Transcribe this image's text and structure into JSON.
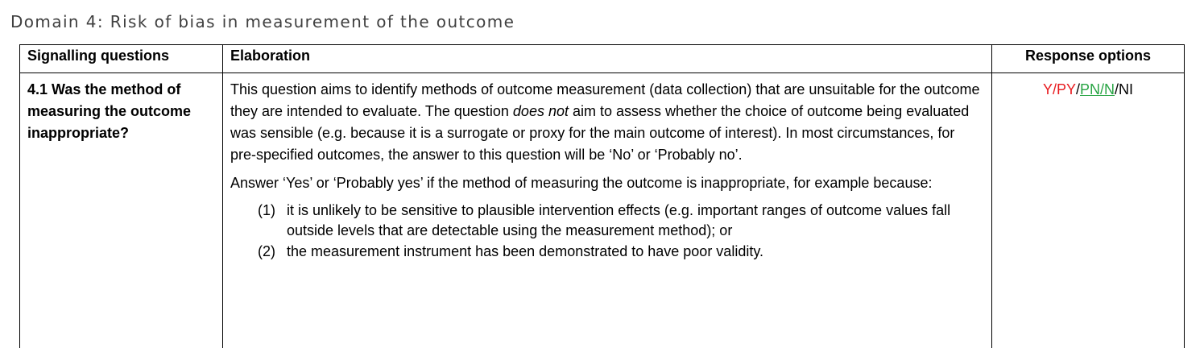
{
  "heading": "Domain 4: Risk of bias in measurement of the outcome",
  "table": {
    "headers": {
      "questions": "Signalling questions",
      "elaboration": "Elaboration",
      "responses": "Response options"
    },
    "row": {
      "question": "4.1 Was the method of measuring the outcome inappropriate?",
      "elaboration": {
        "para1_before": "This question aims to identify methods of outcome measurement (data collection) that are unsuitable for the outcome they are intended to evaluate. The question ",
        "para1_emph": "does not",
        "para1_after": " aim to assess whether the choice of outcome being evaluated was sensible (e.g. because it is a surrogate or proxy for the main outcome of interest). In most circumstances, for pre-specified outcomes, the answer to this question will be ‘No’ or ‘Probably no’.",
        "para2": "Answer ‘Yes’ or ‘Probably yes’ if the method of measuring the outcome is inappropriate, for example because:",
        "list": [
          {
            "num": "(1)",
            "text": "it is unlikely to be sensitive to plausible intervention effects (e.g. important ranges of outcome values fall outside levels that are detectable using the measurement method); or"
          },
          {
            "num": "(2)",
            "text": "the measurement instrument has been demonstrated to have poor validity."
          }
        ]
      },
      "responses": {
        "y": "Y",
        "py": "PY",
        "pn": "PN",
        "n": "N",
        "ni": "NI",
        "separator": "/",
        "colors": {
          "unfavourable": "#e8191d",
          "favourable": "#27a443",
          "neutral": "#000000"
        }
      }
    }
  }
}
